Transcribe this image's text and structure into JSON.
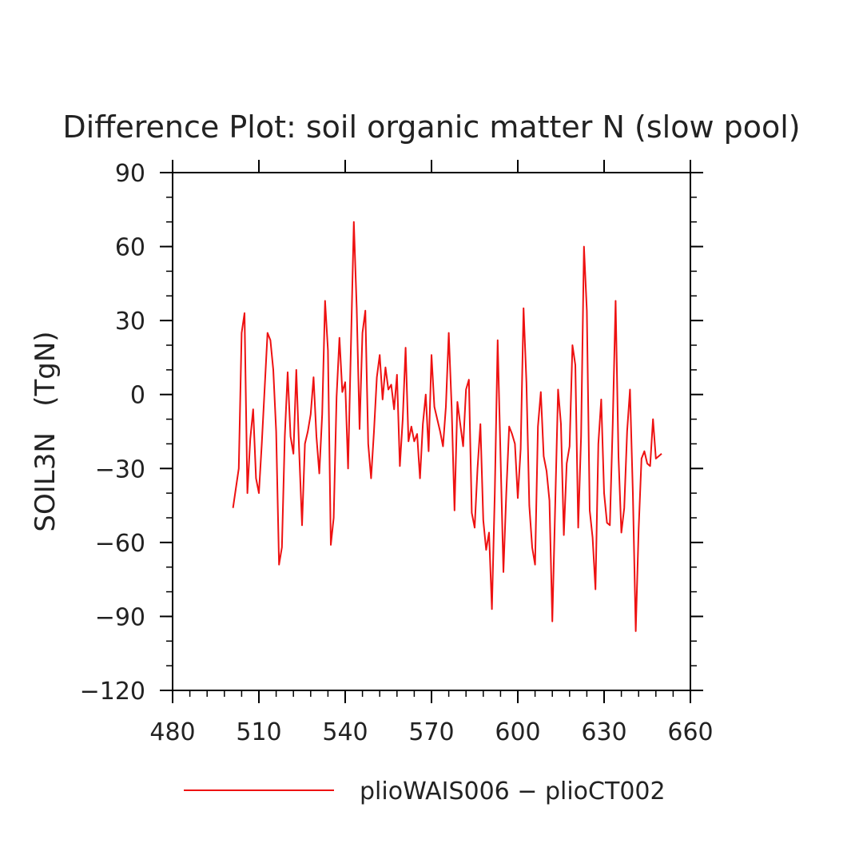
{
  "chart_data": {
    "type": "line",
    "title": "Difference Plot: soil organic matter N (slow pool)",
    "ylabel": "SOIL3N   (TgN)",
    "xlabel": "",
    "xlim": [
      480,
      660
    ],
    "ylim": [
      -120,
      90
    ],
    "x_ticks": [
      "480",
      "510",
      "540",
      "570",
      "600",
      "630",
      "660"
    ],
    "y_ticks": [
      "90",
      "60",
      "30",
      "0",
      "−30",
      "−60",
      "−90",
      "−120"
    ],
    "grid": false,
    "legend_position": "bottom",
    "series": [
      {
        "name": "plioWAIS006 − plioCT002",
        "color": "#ee1111",
        "x": [
          501,
          503,
          504,
          505,
          506,
          507,
          508,
          509,
          510,
          511,
          513,
          514,
          515,
          516,
          517,
          518,
          519,
          520,
          521,
          522,
          523,
          524,
          525,
          526,
          527,
          528,
          529,
          530,
          531,
          532,
          533,
          534,
          535,
          536,
          537,
          538,
          539,
          540,
          541,
          543,
          544,
          545,
          546,
          547,
          548,
          549,
          550,
          551,
          552,
          553,
          554,
          555,
          556,
          557,
          558,
          559,
          560,
          561,
          562,
          563,
          564,
          565,
          566,
          567,
          568,
          569,
          570,
          571,
          572,
          573,
          574,
          575,
          576,
          577,
          578,
          579,
          580,
          581,
          582,
          583,
          584,
          585,
          586,
          587,
          588,
          589,
          590,
          591,
          592,
          593,
          594,
          595,
          596,
          597,
          598,
          599,
          600,
          601,
          602,
          603,
          604,
          605,
          606,
          607,
          608,
          609,
          610,
          611,
          612,
          613,
          614,
          615,
          616,
          617,
          618,
          619,
          620,
          621,
          622,
          623,
          624,
          625,
          626,
          627,
          628,
          629,
          630,
          631,
          632,
          633,
          634,
          635,
          636,
          637,
          638,
          639,
          640,
          641,
          642,
          643,
          644,
          645,
          646,
          647,
          648,
          649,
          650
        ],
        "y": [
          -46,
          -30,
          25,
          33,
          -40,
          -18,
          -6,
          -34,
          -40,
          -20,
          25,
          22,
          10,
          -15,
          -69,
          -62,
          -17,
          9,
          -17,
          -24,
          10,
          -23,
          -53,
          -20,
          -15,
          -8,
          7,
          -17,
          -32,
          -8,
          38,
          18,
          -61,
          -50,
          -1,
          23,
          1,
          5,
          -30,
          70,
          35,
          -14,
          25,
          34,
          -20,
          -34,
          -15,
          7,
          16,
          -2,
          11,
          2,
          4,
          -6,
          8,
          -29,
          -10,
          19,
          -19,
          -13,
          -19,
          -16,
          -34,
          -12,
          0,
          -23,
          16,
          -5,
          -10,
          -15,
          -21,
          -5,
          25,
          -5,
          -47,
          -3,
          -12,
          -21,
          2,
          6,
          -48,
          -54,
          -30,
          -12,
          -51,
          -63,
          -56,
          -87,
          -40,
          22,
          -25,
          -72,
          -40,
          -13,
          -16,
          -20,
          -42,
          -22,
          35,
          5,
          -45,
          -62,
          -69,
          -13,
          1,
          -25,
          -31,
          -43,
          -92,
          -45,
          2,
          -12,
          -57,
          -28,
          -21,
          20,
          12,
          -54,
          -17,
          60,
          34,
          -47,
          -58,
          -79,
          -20,
          -2,
          -40,
          -52,
          -53,
          -12,
          38,
          -25,
          -56,
          -46,
          -15,
          2,
          -40,
          -96,
          -55,
          -26,
          -23,
          -28,
          -29,
          -10,
          -26,
          -25,
          -24
        ]
      }
    ]
  }
}
